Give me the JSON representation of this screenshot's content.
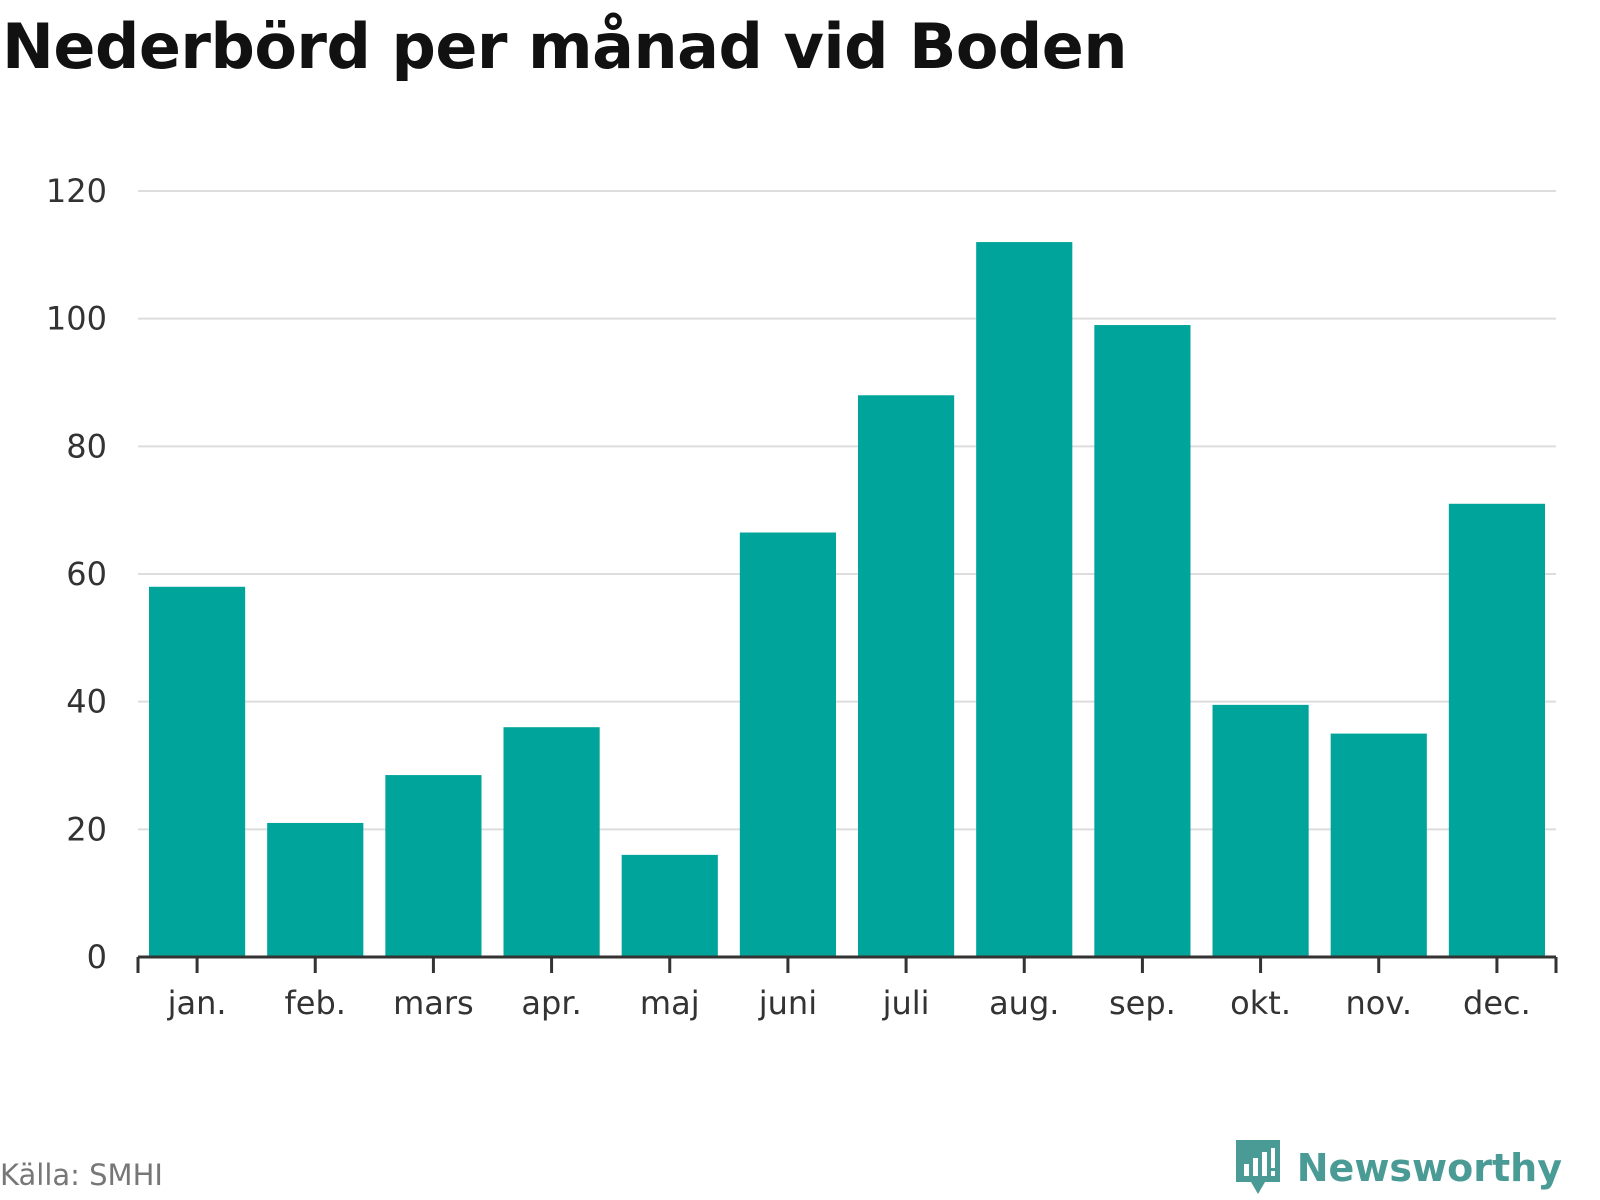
{
  "chart_data": {
    "type": "bar",
    "title": "Nederbörd per månad vid Boden",
    "categories": [
      "jan.",
      "feb.",
      "mars",
      "apr.",
      "maj",
      "juni",
      "juli",
      "aug.",
      "sep.",
      "okt.",
      "nov.",
      "dec."
    ],
    "values": [
      58,
      21,
      28.5,
      36,
      16,
      66.5,
      88,
      112,
      99,
      39.5,
      35,
      71
    ],
    "ylim": [
      0,
      120
    ],
    "yticks": [
      0,
      20,
      40,
      60,
      80,
      100,
      120
    ],
    "grid": true,
    "legend": "none",
    "bar_color": "#00a49a",
    "grid_color": "#dddddd",
    "axis_color": "#333333"
  },
  "footer": {
    "source": "Källa: SMHI",
    "brand": "Newsworthy",
    "brand_icon": "newsworthy-logo-icon",
    "brand_color": "#4a9a95"
  }
}
